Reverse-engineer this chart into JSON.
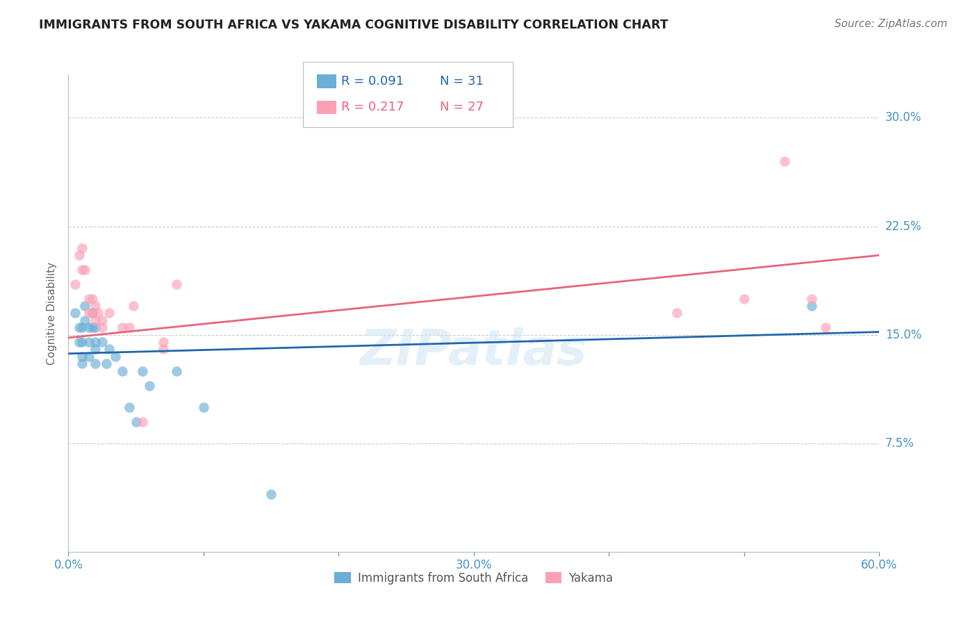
{
  "title": "IMMIGRANTS FROM SOUTH AFRICA VS YAKAMA COGNITIVE DISABILITY CORRELATION CHART",
  "source": "Source: ZipAtlas.com",
  "ylabel": "Cognitive Disability",
  "x_min": 0.0,
  "x_max": 0.6,
  "y_min": 0.0,
  "y_max": 0.33,
  "y_ticks": [
    0.075,
    0.15,
    0.225,
    0.3
  ],
  "y_tick_labels": [
    "7.5%",
    "15.0%",
    "22.5%",
    "30.0%"
  ],
  "x_ticks": [
    0.0,
    0.1,
    0.2,
    0.3,
    0.4,
    0.5,
    0.6
  ],
  "x_tick_labels": [
    "0.0%",
    "",
    "",
    "30.0%",
    "",
    "",
    "60.0%"
  ],
  "legend_r1": "R = 0.091",
  "legend_n1": "N = 31",
  "legend_r2": "R = 0.217",
  "legend_n2": "N = 27",
  "blue_color": "#6baed6",
  "pink_color": "#fc9fb5",
  "blue_line_color": "#2166ac",
  "pink_line_color": "#e8637a",
  "title_color": "#222222",
  "axis_label_color": "#4393c3",
  "watermark": "ZIPatlas",
  "blue_scatter_x": [
    0.005,
    0.008,
    0.008,
    0.01,
    0.01,
    0.01,
    0.01,
    0.012,
    0.012,
    0.015,
    0.015,
    0.015,
    0.018,
    0.018,
    0.02,
    0.02,
    0.02,
    0.02,
    0.025,
    0.028,
    0.03,
    0.035,
    0.04,
    0.045,
    0.05,
    0.055,
    0.06,
    0.08,
    0.1,
    0.15,
    0.55
  ],
  "blue_scatter_y": [
    0.165,
    0.155,
    0.145,
    0.155,
    0.145,
    0.135,
    0.13,
    0.17,
    0.16,
    0.155,
    0.145,
    0.135,
    0.165,
    0.155,
    0.155,
    0.145,
    0.14,
    0.13,
    0.145,
    0.13,
    0.14,
    0.135,
    0.125,
    0.1,
    0.09,
    0.125,
    0.115,
    0.125,
    0.1,
    0.04,
    0.17
  ],
  "pink_scatter_x": [
    0.005,
    0.008,
    0.01,
    0.01,
    0.012,
    0.015,
    0.015,
    0.018,
    0.018,
    0.02,
    0.02,
    0.022,
    0.025,
    0.025,
    0.03,
    0.04,
    0.045,
    0.048,
    0.055,
    0.07,
    0.07,
    0.08,
    0.45,
    0.5,
    0.53,
    0.55,
    0.56
  ],
  "pink_scatter_y": [
    0.185,
    0.205,
    0.21,
    0.195,
    0.195,
    0.165,
    0.175,
    0.175,
    0.165,
    0.17,
    0.16,
    0.165,
    0.16,
    0.155,
    0.165,
    0.155,
    0.155,
    0.17,
    0.09,
    0.145,
    0.14,
    0.185,
    0.165,
    0.175,
    0.27,
    0.175,
    0.155
  ],
  "blue_line_x": [
    0.0,
    0.6
  ],
  "blue_line_y_start": 0.137,
  "blue_line_y_end": 0.152,
  "pink_line_x": [
    0.0,
    0.6
  ],
  "pink_line_y_start": 0.148,
  "pink_line_y_end": 0.205
}
